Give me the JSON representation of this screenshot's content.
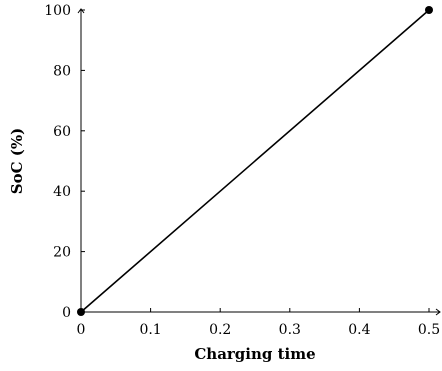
{
  "chart_data": {
    "type": "line",
    "title": "",
    "xlabel": "Charging time",
    "ylabel": "SoC (%)",
    "xlim": [
      0,
      0.5
    ],
    "ylim": [
      0,
      100
    ],
    "xticks": [
      0,
      0.1,
      0.2,
      0.3,
      0.4,
      0.5
    ],
    "yticks": [
      0,
      20,
      40,
      60,
      80,
      100
    ],
    "xtick_labels": [
      "0",
      "0.1",
      "0.2",
      "0.3",
      "0.4",
      "0.5"
    ],
    "ytick_labels": [
      "0",
      "20",
      "40",
      "60",
      "80",
      "100"
    ],
    "grid": false,
    "legend": "none",
    "series": [
      {
        "x": [
          0,
          0.5
        ],
        "y": [
          0,
          100
        ],
        "marker": "circle",
        "color": "#000000"
      }
    ]
  }
}
